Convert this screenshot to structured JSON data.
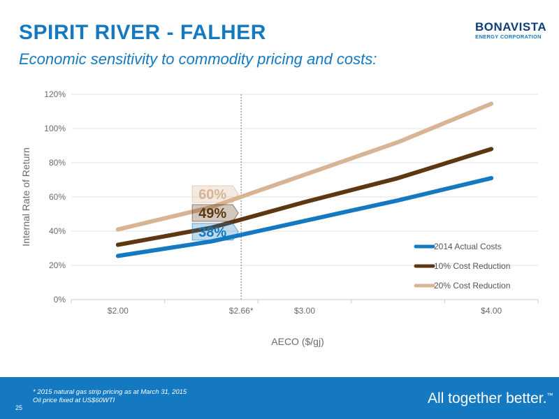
{
  "header": {
    "title": "SPIRIT RIVER - FALHER",
    "subtitle": "Economic sensitivity to commodity pricing and costs:"
  },
  "logo": {
    "main": "BONAVISTA",
    "sub": "ENERGY CORPORATION"
  },
  "footer": {
    "note_line1": "* 2015 natural gas strip pricing as at March 31, 2015",
    "note_line2": "Oil price fixed at US$60WTI",
    "page_number": "25",
    "tagline": "All together better.",
    "tagline_mark": "™"
  },
  "chart_data": {
    "type": "line",
    "xlabel": "AECO ($/gj)",
    "ylabel": "Internal Rate of Return",
    "xlim": [
      1.75,
      4.25
    ],
    "ylim": [
      0,
      120
    ],
    "x_ticks": [
      {
        "value": 2.0,
        "label": "$2.00"
      },
      {
        "value": 2.66,
        "label": "$2.66*"
      },
      {
        "value": 3.0,
        "label": "$3.00"
      },
      {
        "value": 4.0,
        "label": "$4.00"
      }
    ],
    "y_ticks": [
      {
        "value": 0,
        "label": "0%"
      },
      {
        "value": 20,
        "label": "20%"
      },
      {
        "value": 40,
        "label": "40%"
      },
      {
        "value": 60,
        "label": "60%"
      },
      {
        "value": 80,
        "label": "80%"
      },
      {
        "value": 100,
        "label": "100%"
      },
      {
        "value": 120,
        "label": "120%"
      }
    ],
    "grid": true,
    "reference_line_x": 2.66,
    "legend_position": "bottom-right",
    "series": [
      {
        "name": "2014 Actual Costs",
        "color": "#1479c1",
        "x": [
          2.0,
          2.5,
          3.0,
          3.5,
          4.0
        ],
        "y": [
          25.5,
          34,
          46,
          58,
          71
        ]
      },
      {
        "name": "10% Cost Reduction",
        "color": "#5c3712",
        "x": [
          2.0,
          2.5,
          3.0,
          3.5,
          4.0
        ],
        "y": [
          32,
          42,
          57,
          71,
          88
        ]
      },
      {
        "name": "20% Cost Reduction",
        "color": "#d7b493",
        "x": [
          2.0,
          2.5,
          3.0,
          3.5,
          4.0
        ],
        "y": [
          41,
          54,
          73,
          92,
          114.5
        ]
      }
    ],
    "annotations": [
      {
        "text": "60%",
        "x": 2.66,
        "y": 60,
        "series": "20% Cost Reduction",
        "text_color": "#d7b493"
      },
      {
        "text": "49%",
        "x": 2.66,
        "y": 49,
        "series": "10% Cost Reduction",
        "text_color": "#5c3712"
      },
      {
        "text": "38%",
        "x": 2.66,
        "y": 38,
        "series": "2014 Actual Costs",
        "text_color": "#1479c1"
      }
    ]
  }
}
